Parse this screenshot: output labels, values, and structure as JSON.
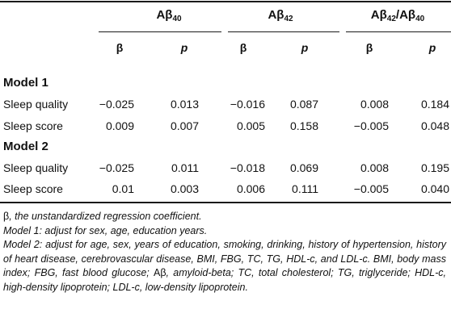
{
  "table": {
    "headers": [
      {
        "base": "Aβ",
        "sub": "40",
        "tail": "",
        "sub2": ""
      },
      {
        "base": "Aβ",
        "sub": "42",
        "tail": "",
        "sub2": ""
      },
      {
        "base": "Aβ",
        "sub": "42",
        "tail": "/Aβ",
        "sub2": "40"
      }
    ],
    "beta_symbol": "β",
    "p_symbol": "p",
    "rows": [
      {
        "label": "Model 1",
        "type": "model",
        "values": []
      },
      {
        "label": "Sleep quality",
        "type": "data",
        "values": [
          "−0.025",
          "0.013",
          "−0.016",
          "0.087",
          "0.008",
          "0.184"
        ]
      },
      {
        "label": "Sleep score",
        "type": "data",
        "values": [
          "0.009",
          "0.007",
          "0.005",
          "0.158",
          "−0.005",
          "0.048"
        ]
      },
      {
        "label": "Model 2",
        "type": "model",
        "values": []
      },
      {
        "label": "Sleep quality",
        "type": "data",
        "values": [
          "−0.025",
          "0.011",
          "−0.018",
          "0.069",
          "0.008",
          "0.195"
        ]
      },
      {
        "label": "Sleep score",
        "type": "data",
        "values": [
          "0.01",
          "0.003",
          "0.006",
          "0.111",
          "−0.005",
          "0.040"
        ]
      }
    ]
  },
  "notes": {
    "beta_sym": "β",
    "beta_text": ", the unstandardized regression coefficient.",
    "model1": "Model 1: adjust for sex, age, education years.",
    "model2_a": "Model 2: adjust for age, sex, years of education, smoking, drinking, history of hypertension, history of heart disease, cerebrovascular disease, BMI, FBG, TC, TG, HDL-c, and LDL-c. BMI, body mass index; FBG, fast blood glucose; ",
    "model2_sym": "Aβ",
    "model2_b": ", amyloid-beta; TC, total cholesterol; TG, triglyceride; HDL-c, high-density lipoprotein; LDL-c, low-density lipoprotein."
  }
}
